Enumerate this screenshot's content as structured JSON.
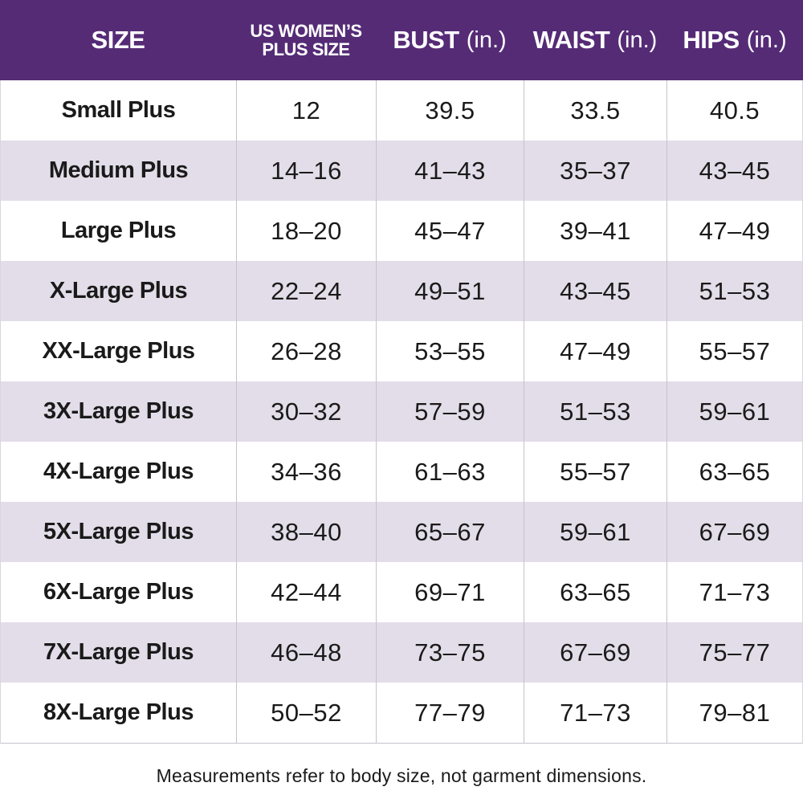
{
  "colors": {
    "header_bg": "#552B76",
    "header_text": "#ffffff",
    "row_alt_bg": "#E2DDE8",
    "row_bg": "#ffffff",
    "divider": "#c6c3c9",
    "text": "#1a1a1a"
  },
  "header": {
    "col1": "SIZE",
    "col2_line1": "US WOMEN’S",
    "col2_line2": "PLUS SIZE",
    "col3_main": "BUST",
    "col3_unit": "(in.)",
    "col4_main": "WAIST",
    "col4_unit": "(in.)",
    "col5_main": "HIPS",
    "col5_unit": "(in.)"
  },
  "chart_data": {
    "type": "table",
    "title": "Women's plus size chart",
    "columns": [
      "SIZE",
      "US WOMEN’S PLUS SIZE",
      "BUST (in.)",
      "WAIST (in.)",
      "HIPS (in.)"
    ],
    "rows": [
      [
        "Small Plus",
        "12",
        "39.5",
        "33.5",
        "40.5"
      ],
      [
        "Medium Plus",
        "14–16",
        "41–43",
        "35–37",
        "43–45"
      ],
      [
        "Large Plus",
        "18–20",
        "45–47",
        "39–41",
        "47–49"
      ],
      [
        "X-Large Plus",
        "22–24",
        "49–51",
        "43–45",
        "51–53"
      ],
      [
        "XX-Large Plus",
        "26–28",
        "53–55",
        "47–49",
        "55–57"
      ],
      [
        "3X-Large Plus",
        "30–32",
        "57–59",
        "51–53",
        "59–61"
      ],
      [
        "4X-Large Plus",
        "34–36",
        "61–63",
        "55–57",
        "63–65"
      ],
      [
        "5X-Large Plus",
        "38–40",
        "65–67",
        "59–61",
        "67–69"
      ],
      [
        "6X-Large Plus",
        "42–44",
        "69–71",
        "63–65",
        "71–73"
      ],
      [
        "7X-Large Plus",
        "46–48",
        "73–75",
        "67–69",
        "75–77"
      ],
      [
        "8X-Large Plus",
        "50–52",
        "77–79",
        "71–73",
        "79–81"
      ]
    ]
  },
  "footer": {
    "note": "Measurements refer to body size, not garment dimensions."
  }
}
